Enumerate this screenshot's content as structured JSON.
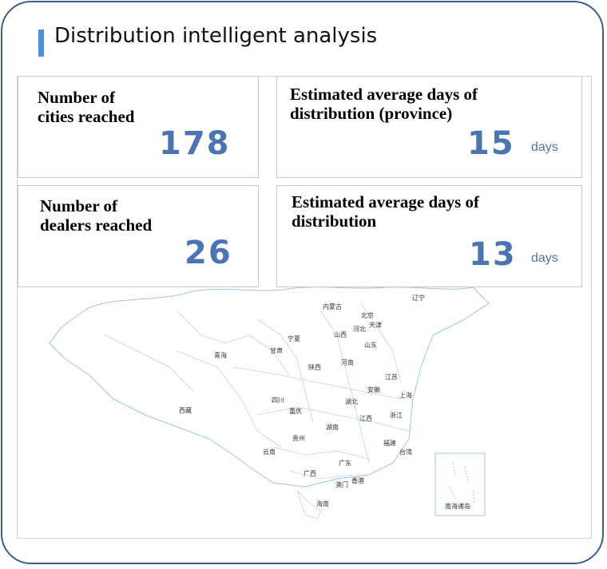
{
  "header": {
    "title": "Distribution intelligent analysis"
  },
  "stats": [
    {
      "label_line1": "Number of",
      "label_line2": "cities reached",
      "value": "178",
      "unit": ""
    },
    {
      "label_line1": "Estimated average days of",
      "label_line2": "distribution (province)",
      "value": "15",
      "unit": "days"
    },
    {
      "label_line1": "Number of",
      "label_line2": "dealers reached",
      "value": "26",
      "unit": ""
    },
    {
      "label_line1": "Estimated average days of",
      "label_line2": "distribution",
      "value": "13",
      "unit": "days"
    }
  ],
  "map": {
    "labels": [
      "内蒙古",
      "辽宁",
      "北京",
      "天津",
      "河北",
      "宁夏",
      "山西",
      "山东",
      "青海",
      "甘肃",
      "陕西",
      "河南",
      "江苏",
      "安徽",
      "上海",
      "四川",
      "湖北",
      "西藏",
      "重庆",
      "浙江",
      "江西",
      "湖南",
      "贵州",
      "福建",
      "云南",
      "台湾",
      "广东",
      "广西",
      "香港",
      "澳门",
      "海南",
      "南海诸岛"
    ]
  },
  "colors": {
    "accent": "#4a90e2",
    "value": "#4a74b3",
    "border": "#3d5b8c"
  }
}
